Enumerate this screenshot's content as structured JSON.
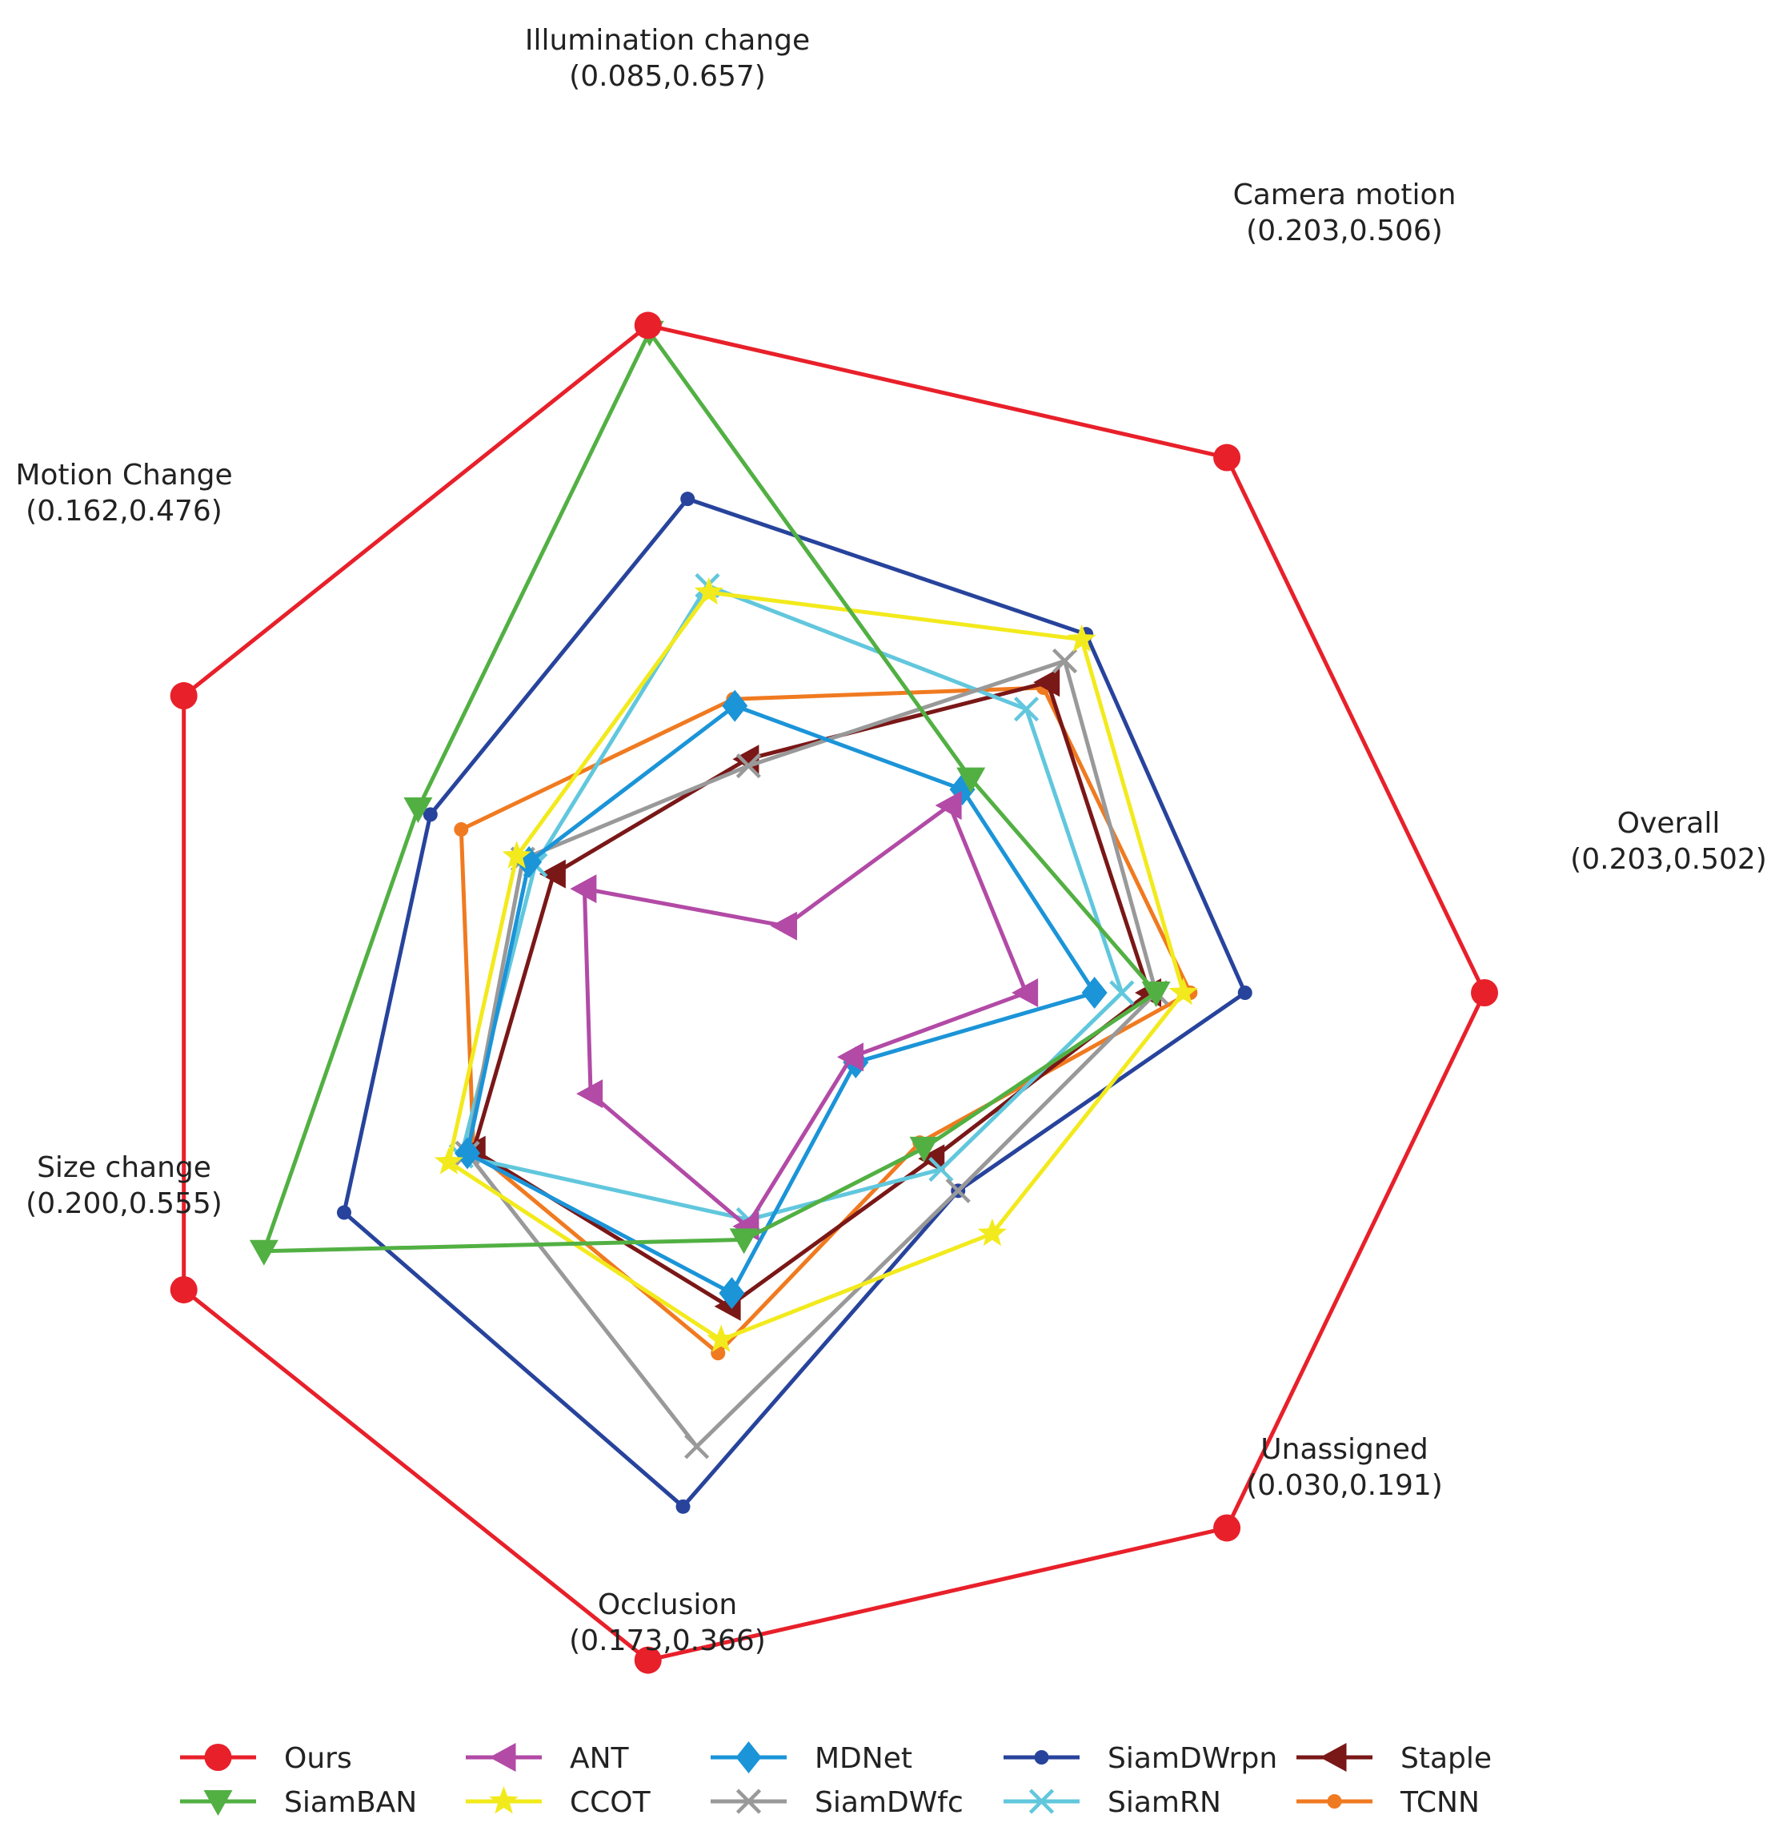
{
  "chart_data": {
    "type": "radar",
    "axes": [
      {
        "name": "Overall",
        "range_label": "(0.203,0.502)",
        "min": 0.203,
        "max": 0.502
      },
      {
        "name": "Camera motion",
        "range_label": "(0.203,0.506)",
        "min": 0.203,
        "max": 0.506
      },
      {
        "name": "Illumination change",
        "range_label": "(0.085,0.657)",
        "min": 0.085,
        "max": 0.657
      },
      {
        "name": "Motion Change",
        "range_label": "(0.162,0.476)",
        "min": 0.162,
        "max": 0.476
      },
      {
        "name": "Size change",
        "range_label": "(0.200,0.555)",
        "min": 0.2,
        "max": 0.555
      },
      {
        "name": "Occlusion",
        "range_label": "(0.173,0.366)",
        "min": 0.173,
        "max": 0.366
      },
      {
        "name": "Unassigned",
        "range_label": "(0.030,0.191)",
        "min": 0.03,
        "max": 0.191
      }
    ],
    "series": [
      {
        "name": "Ours",
        "color": "#e8202a",
        "marker": "circle",
        "normalized": [
          1.0,
          1.0,
          1.0,
          1.0,
          1.0,
          1.0,
          1.0
        ]
      },
      {
        "name": "SiamBAN",
        "color": "#52b043",
        "marker": "triangle-down",
        "normalized": [
          0.52,
          0.4,
          0.99,
          0.62,
          0.87,
          0.37,
          0.29
        ]
      },
      {
        "name": "ANT",
        "color": "#b24aa6",
        "marker": "triangle-left",
        "normalized": [
          0.33,
          0.35,
          0.1,
          0.35,
          0.34,
          0.35,
          0.12
        ]
      },
      {
        "name": "CCOT",
        "color": "#f2ea1c",
        "marker": "star",
        "normalized": [
          0.56,
          0.66,
          0.6,
          0.46,
          0.57,
          0.52,
          0.45
        ]
      },
      {
        "name": "MDNet",
        "color": "#1b94d8",
        "marker": "diamond",
        "normalized": [
          0.43,
          0.38,
          0.43,
          0.44,
          0.54,
          0.45,
          0.13
        ]
      },
      {
        "name": "SiamDWfc",
        "color": "#999999",
        "marker": "x",
        "normalized": [
          0.52,
          0.62,
          0.34,
          0.45,
          0.54,
          0.68,
          0.37
        ]
      },
      {
        "name": "SiamDWrpn",
        "color": "#27439c",
        "marker": "dot",
        "normalized": [
          0.65,
          0.67,
          0.74,
          0.6,
          0.74,
          0.77,
          0.37
        ]
      },
      {
        "name": "SiamRN",
        "color": "#61c7dd",
        "marker": "x",
        "normalized": [
          0.47,
          0.53,
          0.61,
          0.43,
          0.55,
          0.34,
          0.33
        ]
      },
      {
        "name": "Staple",
        "color": "#7a1717",
        "marker": "triangle-left",
        "normalized": [
          0.51,
          0.58,
          0.35,
          0.4,
          0.53,
          0.47,
          0.31
        ]
      },
      {
        "name": "TCNN",
        "color": "#f07a20",
        "marker": "dot",
        "normalized": [
          0.57,
          0.57,
          0.44,
          0.55,
          0.53,
          0.54,
          0.28
        ]
      }
    ],
    "legend": {
      "placement": "bottom",
      "columns": 6,
      "rows": 2
    },
    "grid": false
  }
}
